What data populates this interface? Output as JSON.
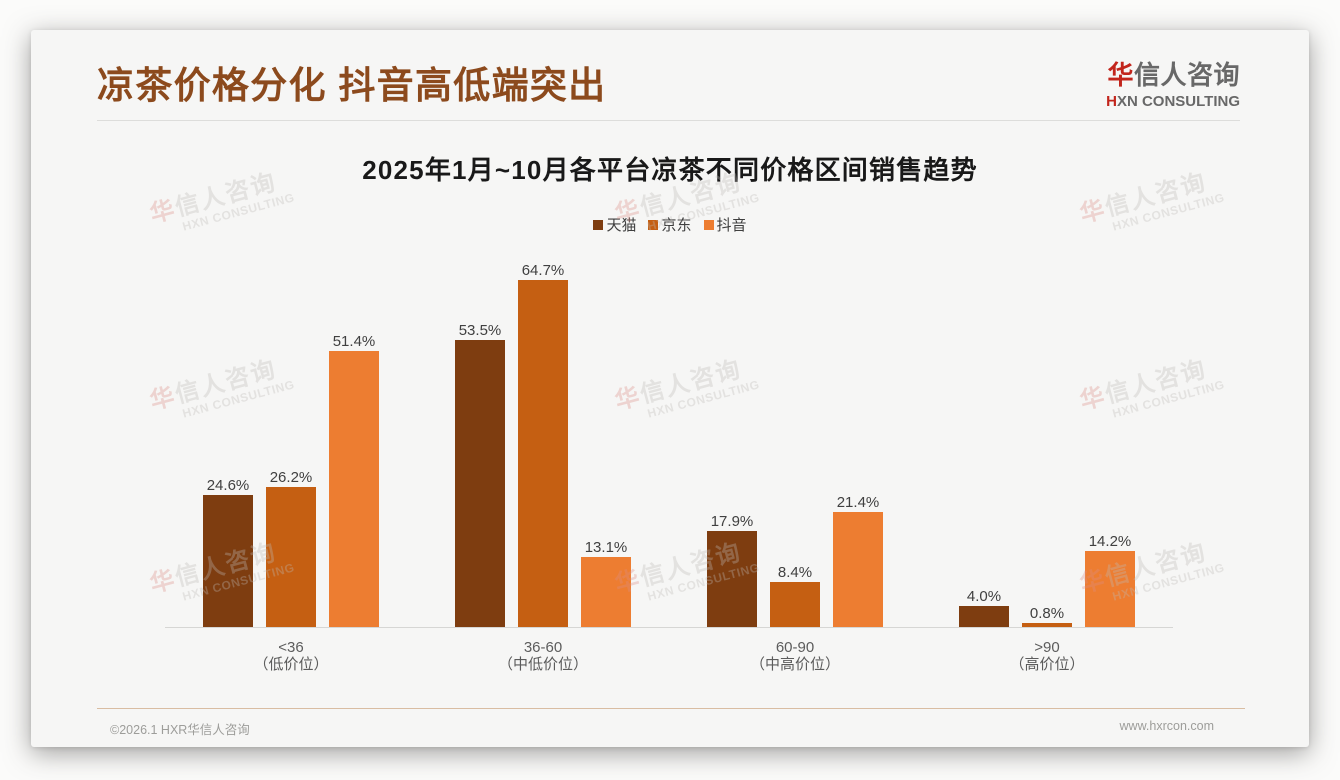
{
  "page_title": "凉茶价格分化 抖音高低端突出",
  "logo": {
    "cn_first": "华",
    "cn_rest": "信人咨询",
    "en_first": "H",
    "en_rest": "XN CONSULTING"
  },
  "watermark": {
    "cn_first": "华",
    "cn_rest": "信人咨询",
    "en": "HXN CONSULTING"
  },
  "chart_data": {
    "type": "bar",
    "title": "2025年1月~10月各平台凉茶不同价格区间销售趋势",
    "categories": [
      {
        "range": "<36",
        "tier": "（低价位）"
      },
      {
        "range": "36-60",
        "tier": "（中低价位）"
      },
      {
        "range": "60-90",
        "tier": "（中高价位）"
      },
      {
        "range": ">90",
        "tier": "（高价位）"
      }
    ],
    "series": [
      {
        "name": "天猫",
        "color": "#7e3d10",
        "values": [
          24.6,
          53.5,
          17.9,
          4.0
        ]
      },
      {
        "name": "京东",
        "color": "#c55f12",
        "values": [
          26.2,
          64.7,
          8.4,
          0.8
        ]
      },
      {
        "name": "抖音",
        "color": "#ed7d31",
        "values": [
          51.4,
          13.1,
          21.4,
          14.2
        ]
      }
    ],
    "value_suffix": "%",
    "ylim": [
      0,
      70
    ],
    "legend_position": "top",
    "grid": false,
    "xlabel": "",
    "ylabel": ""
  },
  "footer": {
    "copyright": "©2026.1 HXR华信人咨询",
    "website": "www.hxrcon.com"
  },
  "colors": {
    "title_brown": "#8c4a1d",
    "logo_red": "#c2251c",
    "footer_rule": "#d9bda2"
  }
}
